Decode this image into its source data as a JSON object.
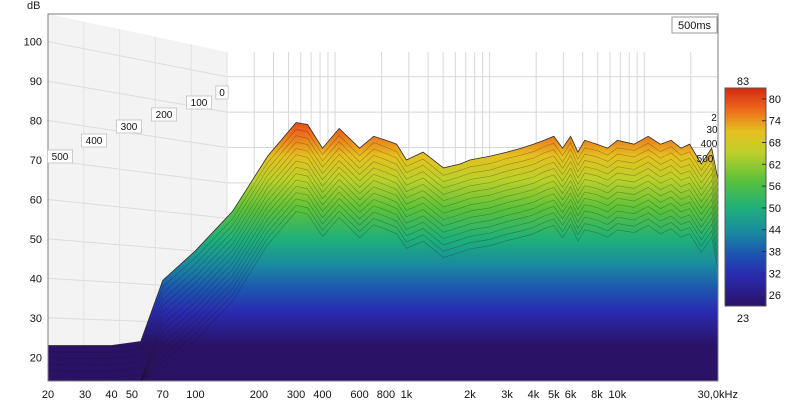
{
  "chart_data": {
    "type": "waterfall",
    "y_unit": "dB",
    "time_label": "500ms",
    "y_ticks": [
      "100",
      "90",
      "80",
      "70",
      "60",
      "50",
      "40",
      "30",
      "20"
    ],
    "x_ticks": [
      "20",
      "30",
      "40",
      "50",
      "70",
      "100",
      "200",
      "300",
      "400",
      "600",
      "800",
      "1k",
      "2k",
      "3k",
      "4k",
      "5k",
      "6k",
      "8k",
      "10k",
      "30,0kHz"
    ],
    "depth_ticks_left": [
      "0",
      "100",
      "200",
      "300",
      "400",
      "500"
    ],
    "depth_ticks_right": [
      "2",
      "30",
      "400",
      "500"
    ],
    "colorbar": {
      "max": "83",
      "min": "23",
      "ticks": [
        "80",
        "74",
        "68",
        "62",
        "56",
        "50",
        "44",
        "38",
        "32",
        "26"
      ]
    },
    "ylim": [
      14,
      107
    ],
    "xlim_hz": [
      20,
      30000
    ],
    "time_range_ms": [
      0,
      500
    ],
    "front_response": {
      "freq_hz": [
        20,
        40,
        55,
        70,
        100,
        150,
        220,
        300,
        340,
        400,
        480,
        600,
        700,
        800,
        900,
        1000,
        1200,
        1500,
        1800,
        2000,
        2500,
        3000,
        3500,
        4000,
        4500,
        5000,
        5500,
        6000,
        6500,
        7000,
        8000,
        9000,
        10000,
        12000,
        14000,
        16000,
        18000,
        20000,
        22000,
        25000,
        28000,
        30000
      ],
      "db": [
        23,
        23,
        24,
        39.5,
        47,
        57,
        71,
        79.5,
        79,
        73,
        78,
        73,
        76,
        75,
        74,
        70,
        72,
        68,
        69,
        70,
        71,
        72,
        73,
        74,
        75,
        76,
        73,
        76,
        72,
        75,
        74,
        73,
        75,
        74,
        76,
        74,
        75,
        73,
        74,
        69,
        73,
        65
      ]
    },
    "colors": {
      "background": "#ffffff",
      "plot_border": "#7f7f7f",
      "grid": "#d8d8d8",
      "surface_top": "#d42a10",
      "surface_bottom": "#2a1266"
    }
  }
}
